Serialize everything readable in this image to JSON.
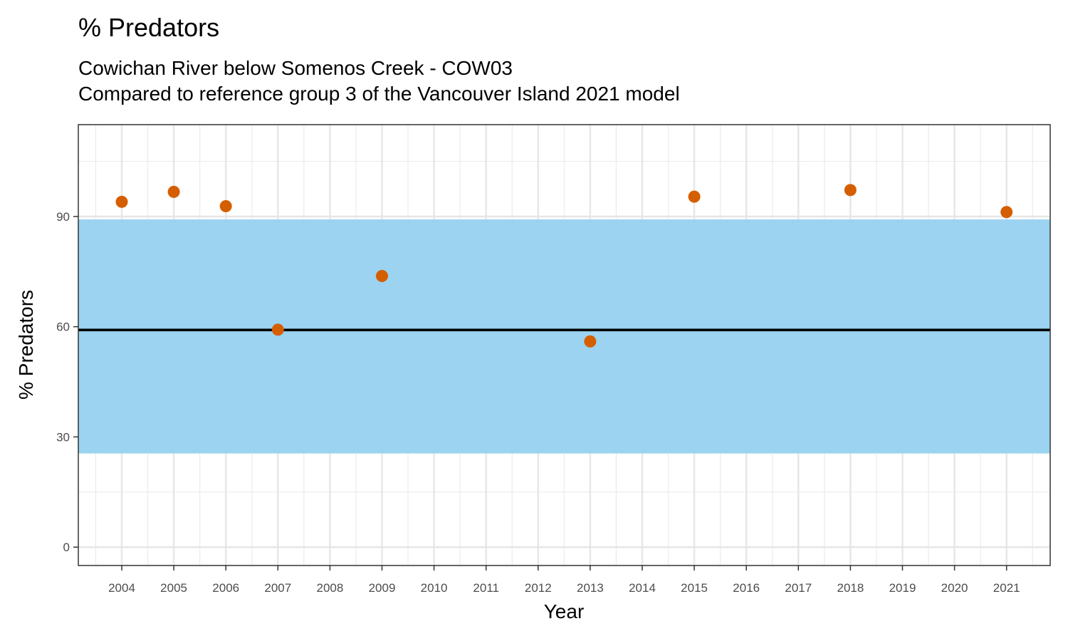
{
  "chart_data": {
    "type": "scatter",
    "title": "% Predators",
    "subtitle_lines": [
      "Cowichan River below Somenos Creek - COW03",
      "Compared to reference group 3 of the Vancouver Island 2021 model"
    ],
    "xlabel": "Year",
    "ylabel": "% Predators",
    "x_categories": [
      "2004",
      "2005",
      "2006",
      "2007",
      "2008",
      "2009",
      "2010",
      "2011",
      "2012",
      "2013",
      "2014",
      "2015",
      "2016",
      "2017",
      "2018",
      "2019",
      "2020",
      "2021"
    ],
    "y_ticks": [
      0,
      30,
      60,
      90
    ],
    "ylim": [
      -5,
      115
    ],
    "grid": true,
    "series": [
      {
        "points": [
          {
            "x": "2004",
            "y": 94.0
          },
          {
            "x": "2005",
            "y": 96.7
          },
          {
            "x": "2006",
            "y": 92.8
          },
          {
            "x": "2007",
            "y": 59.2
          },
          {
            "x": "2009",
            "y": 73.8
          },
          {
            "x": "2013",
            "y": 56.0
          },
          {
            "x": "2015",
            "y": 95.4
          },
          {
            "x": "2018",
            "y": 97.2
          },
          {
            "x": "2021",
            "y": 91.2
          }
        ],
        "color": "#D55E00"
      }
    ],
    "reference_band": {
      "lower": 25.5,
      "upper": 89.2,
      "color": "#9BD3F0"
    },
    "reference_line": {
      "y": 59.1,
      "color": "#000000"
    }
  }
}
